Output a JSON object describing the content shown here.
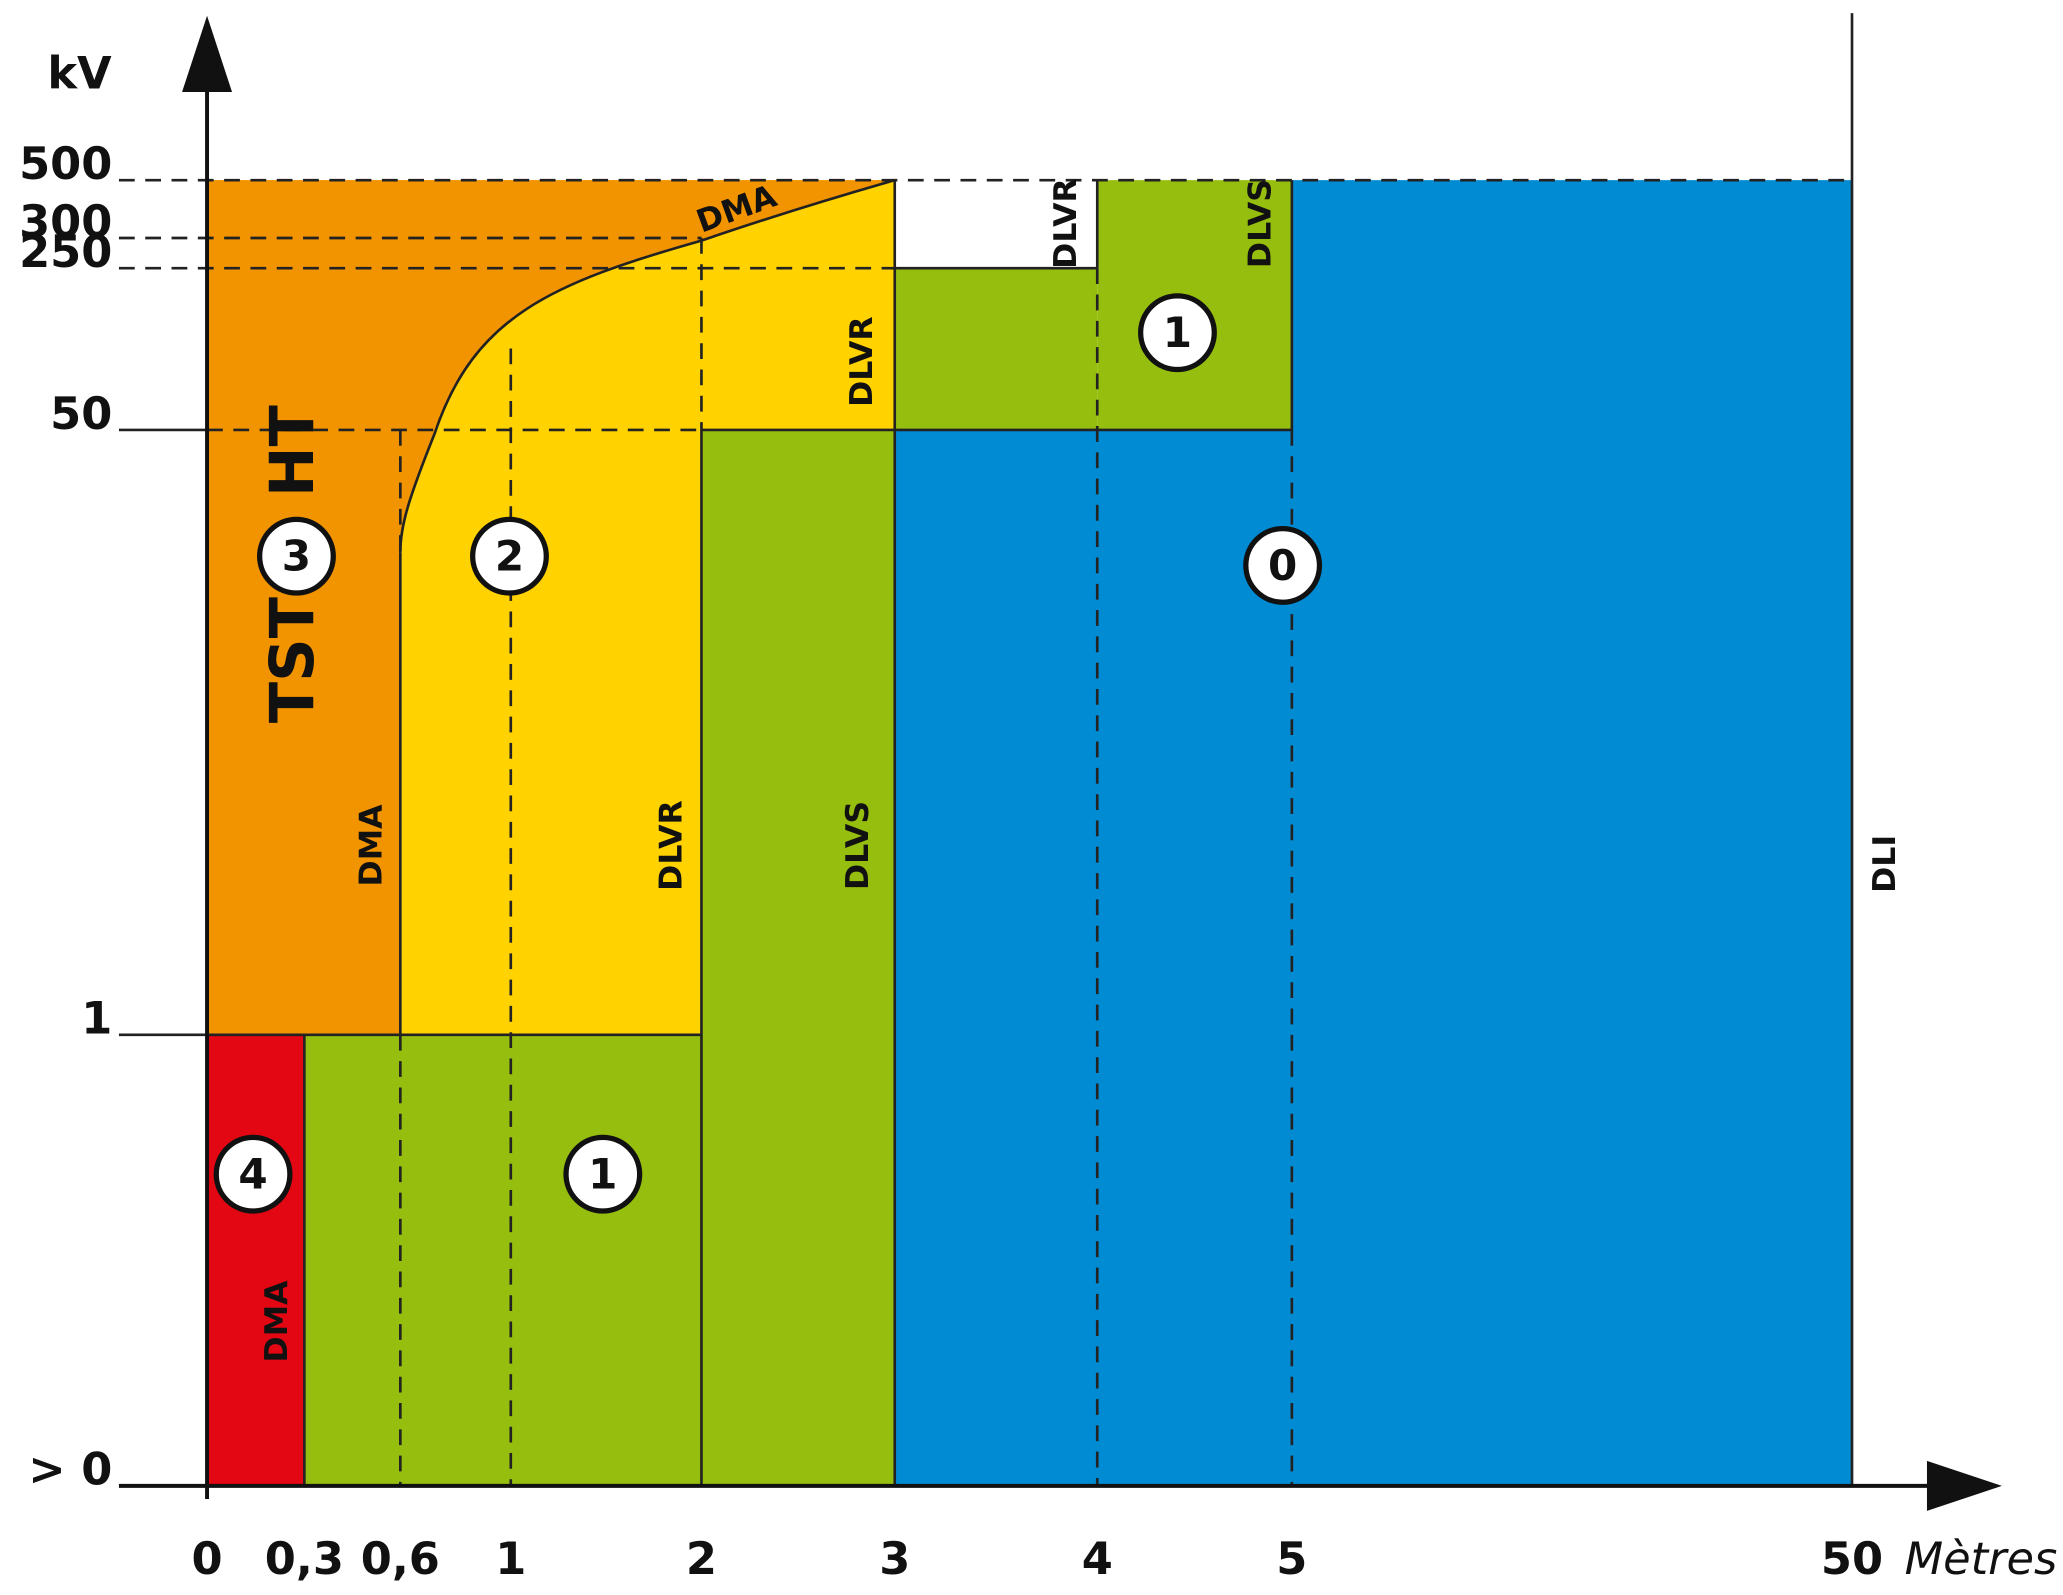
{
  "axes": {
    "y_unit": "kV",
    "x_unit": "Mètres",
    "y_ticks": [
      "500",
      "300",
      "250",
      "50",
      "1",
      "> 0"
    ],
    "x_ticks": [
      "0",
      "0,3",
      "0,6",
      "1",
      "2",
      "3",
      "4",
      "5",
      "50"
    ]
  },
  "zone_labels": {
    "dma_left": "DMA",
    "dlvr_mid": "DLVR",
    "dlvs_mid": "DLVS",
    "dli": "DLI",
    "dma_low": "DMA",
    "dlvr_top": "DLVR",
    "dlvs_top": "DLVS",
    "dlvr_upper": "DLVR",
    "dma_curve": "DMA"
  },
  "work_types": {
    "tst": "TST",
    "ht": "HT"
  },
  "zones": [
    "3",
    "2",
    "0",
    "1",
    "4",
    "1"
  ]
}
